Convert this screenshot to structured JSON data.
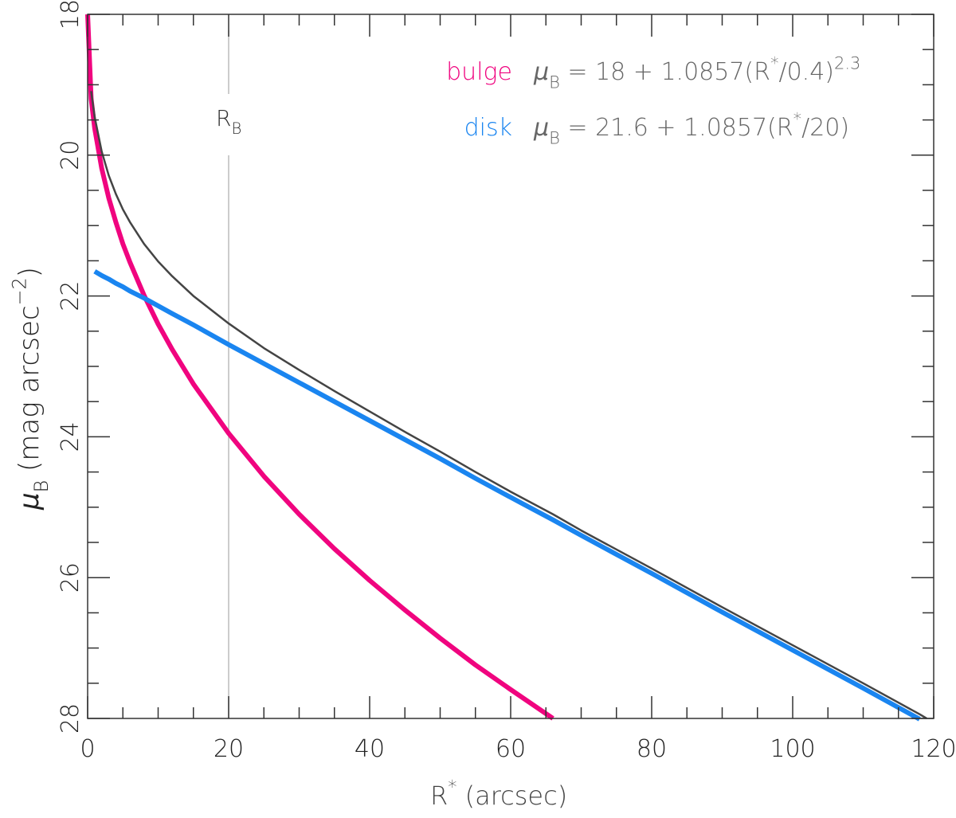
{
  "chart_data": {
    "type": "line",
    "xlabel": [
      "R",
      "*",
      " (arcsec)"
    ],
    "ylabel": [
      "μ",
      "B",
      " (mag arcsec",
      "−2",
      ")"
    ],
    "x": [
      0,
      0.5,
      1,
      2,
      3,
      4,
      5,
      6,
      8,
      10,
      12,
      15,
      20,
      25,
      30,
      35,
      40,
      45,
      50,
      55,
      60,
      66,
      70,
      80,
      90,
      100,
      110,
      118,
      119
    ],
    "series": [
      {
        "name": "bulge",
        "color": "#f0047f",
        "equation": [
          "μ",
          "B",
          " = 18 + 1.0857(R",
          "*",
          "/0.4)",
          "2.3"
        ],
        "values": [
          18,
          19.2,
          19.62,
          20.19,
          20.61,
          20.95,
          21.26,
          21.52,
          21.99,
          22.4,
          22.76,
          23.25,
          23.95,
          24.56,
          25.1,
          25.59,
          26.04,
          26.46,
          26.86,
          27.24,
          27.59,
          28.0,
          null,
          null,
          null,
          null,
          null,
          null,
          null
        ]
      },
      {
        "name": "disk",
        "color": "#1a85f0",
        "equation": [
          "μ",
          "B",
          " = 21.6 + 1.0857(R",
          "*",
          "/20)"
        ],
        "values": [
          null,
          null,
          21.65,
          21.71,
          21.76,
          21.82,
          21.87,
          21.93,
          22.03,
          22.14,
          22.25,
          22.41,
          22.69,
          22.96,
          23.23,
          23.5,
          23.77,
          24.04,
          24.31,
          24.59,
          24.86,
          25.18,
          25.4,
          25.94,
          26.49,
          27.03,
          27.57,
          28.01,
          null
        ]
      },
      {
        "color": "#444444",
        "values": [
          null,
          19.09,
          19.46,
          19.95,
          20.29,
          20.55,
          20.77,
          20.95,
          21.26,
          21.51,
          21.72,
          22.0,
          22.39,
          22.74,
          23.05,
          23.35,
          23.64,
          23.93,
          24.21,
          24.5,
          24.78,
          25.1,
          25.33,
          25.87,
          26.42,
          26.96,
          27.5,
          27.94,
          28.0
        ]
      }
    ],
    "marker_x": 20,
    "marker_label": [
      "R",
      "B"
    ],
    "marker_color": "#bbbbbb",
    "xlim": [
      0,
      120
    ],
    "xticks": [
      0,
      20,
      40,
      60,
      80,
      100,
      120
    ],
    "xminorticks": [
      5,
      10,
      15,
      25,
      30,
      35,
      45,
      50,
      55,
      65,
      70,
      75,
      85,
      90,
      95,
      105,
      110,
      115
    ],
    "ylim": [
      18,
      28
    ],
    "yinverted": true,
    "yticks": [
      18,
      20,
      22,
      24,
      26,
      28
    ],
    "yminorticks": [
      18.5,
      19,
      19.5,
      20.5,
      21,
      21.5,
      22.5,
      23,
      23.5,
      24.5,
      25,
      25.5,
      26.5,
      27,
      27.5
    ]
  }
}
